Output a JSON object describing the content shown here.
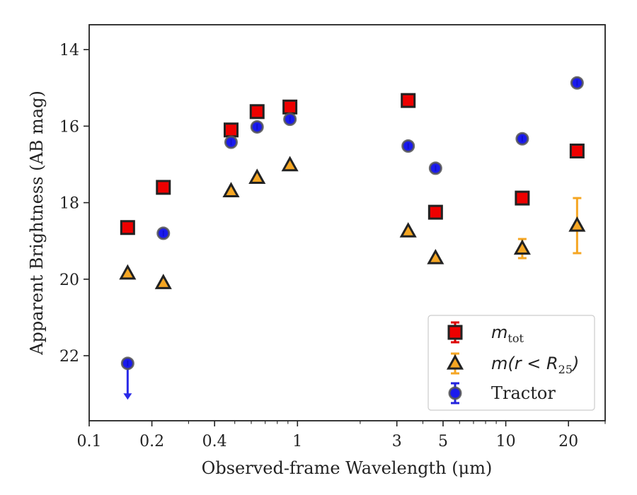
{
  "chart_data": {
    "type": "scatter",
    "xlabel": "Observed-frame Wavelength (μm)",
    "ylabel": "Apparent Brightness (AB mag)",
    "xscale": "log",
    "xlim": [
      0.1,
      30
    ],
    "ylim": [
      23.7,
      13.35
    ],
    "y_inverted": true,
    "x_ticks": [
      {
        "value": 0.1,
        "label": "0.1"
      },
      {
        "value": 0.2,
        "label": "0.2"
      },
      {
        "value": 0.4,
        "label": "0.4"
      },
      {
        "value": 1,
        "label": "1"
      },
      {
        "value": 3,
        "label": "3"
      },
      {
        "value": 5,
        "label": "5"
      },
      {
        "value": 10,
        "label": "10"
      },
      {
        "value": 20,
        "label": "20"
      }
    ],
    "x_minor_ticks": [
      0.3,
      0.5,
      0.6,
      0.7,
      0.8,
      0.9,
      2,
      4,
      6,
      7,
      8,
      9,
      30
    ],
    "y_ticks": [
      14,
      16,
      18,
      20,
      22
    ],
    "grid": false,
    "legend_position": "bottom-right",
    "series": [
      {
        "key": "mtot",
        "legend_main": "m",
        "legend_sub": "tot",
        "marker": "square",
        "face_color": "#ee0000",
        "edge_color": "#222222",
        "error_color": "#dd0000",
        "points": [
          {
            "x": 0.153,
            "y": 18.65
          },
          {
            "x": 0.227,
            "y": 17.6
          },
          {
            "x": 0.48,
            "y": 16.1
          },
          {
            "x": 0.64,
            "y": 15.62
          },
          {
            "x": 0.92,
            "y": 15.5
          },
          {
            "x": 3.4,
            "y": 15.33
          },
          {
            "x": 4.6,
            "y": 18.25
          },
          {
            "x": 12.0,
            "y": 17.88
          },
          {
            "x": 22.0,
            "y": 16.65
          }
        ]
      },
      {
        "key": "mr25",
        "legend_main": "m(r < R",
        "legend_sub": "25",
        "legend_tail": ")",
        "marker": "triangle",
        "face_color": "#f5a623",
        "edge_color": "#222222",
        "error_color": "#f5a623",
        "points": [
          {
            "x": 0.153,
            "y": 19.85
          },
          {
            "x": 0.227,
            "y": 20.1
          },
          {
            "x": 0.48,
            "y": 17.7
          },
          {
            "x": 0.64,
            "y": 17.35
          },
          {
            "x": 0.92,
            "y": 17.02
          },
          {
            "x": 3.4,
            "y": 18.75
          },
          {
            "x": 4.6,
            "y": 19.45
          },
          {
            "x": 12.0,
            "y": 19.2,
            "err": 0.25
          },
          {
            "x": 22.0,
            "y": 18.6,
            "err": 0.72
          }
        ]
      },
      {
        "key": "tractor",
        "legend_main": "Tractor",
        "marker": "circle",
        "face_color": "#1a1aee",
        "edge_color": "#555555",
        "error_color": "#2222dd",
        "points": [
          {
            "x": 0.153,
            "y": 22.2,
            "upper_limit": true
          },
          {
            "x": 0.227,
            "y": 18.8
          },
          {
            "x": 0.48,
            "y": 16.42
          },
          {
            "x": 0.64,
            "y": 16.02
          },
          {
            "x": 0.92,
            "y": 15.82
          },
          {
            "x": 3.4,
            "y": 16.52
          },
          {
            "x": 4.6,
            "y": 17.1
          },
          {
            "x": 12.0,
            "y": 16.33
          },
          {
            "x": 22.0,
            "y": 14.87
          }
        ]
      }
    ]
  }
}
